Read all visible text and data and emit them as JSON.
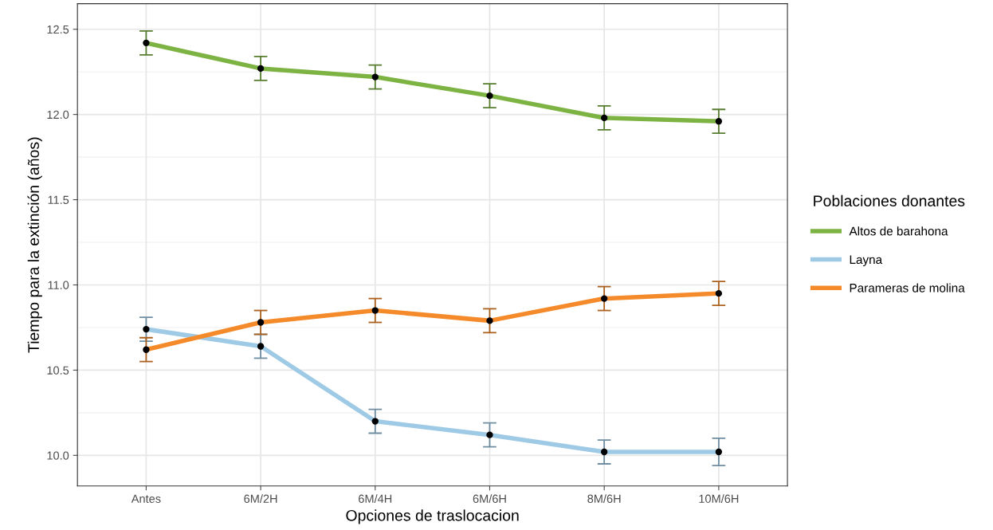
{
  "chart_data": {
    "type": "line",
    "xlabel": "Opciones de traslocacion",
    "ylabel": "Tiempo para la extinción (años)",
    "legend_title": "Poblaciones donantes",
    "legend": "right",
    "grid": true,
    "marker": "circle",
    "line_style": "solid",
    "categories": [
      "Antes",
      "6M/2H",
      "6M/4H",
      "6M/6H",
      "8M/6H",
      "10M/6H"
    ],
    "ylim": [
      9.82,
      12.65
    ],
    "yticks": [
      {
        "value": 10.0,
        "label": "10.0"
      },
      {
        "value": 10.5,
        "label": "10.5"
      },
      {
        "value": 11.0,
        "label": "11.0"
      },
      {
        "value": 11.5,
        "label": "11.5"
      },
      {
        "value": 12.0,
        "label": "12.0"
      },
      {
        "value": 12.5,
        "label": "12.5"
      }
    ],
    "series": [
      {
        "name": "Altos de barahona",
        "color": "#7db343",
        "values": [
          12.42,
          12.27,
          12.22,
          12.11,
          11.98,
          11.96
        ],
        "errors": [
          0.07,
          0.07,
          0.07,
          0.07,
          0.07,
          0.07
        ]
      },
      {
        "name": "Layna",
        "color": "#9ecae6",
        "values": [
          10.74,
          10.64,
          10.2,
          10.12,
          10.02,
          10.02
        ],
        "errors": [
          0.07,
          0.07,
          0.07,
          0.07,
          0.07,
          0.08
        ]
      },
      {
        "name": "Parameras de molina",
        "color": "#f48a2a",
        "values": [
          10.62,
          10.78,
          10.85,
          10.79,
          10.92,
          10.95
        ],
        "errors": [
          0.07,
          0.07,
          0.07,
          0.07,
          0.07,
          0.07
        ]
      }
    ]
  }
}
